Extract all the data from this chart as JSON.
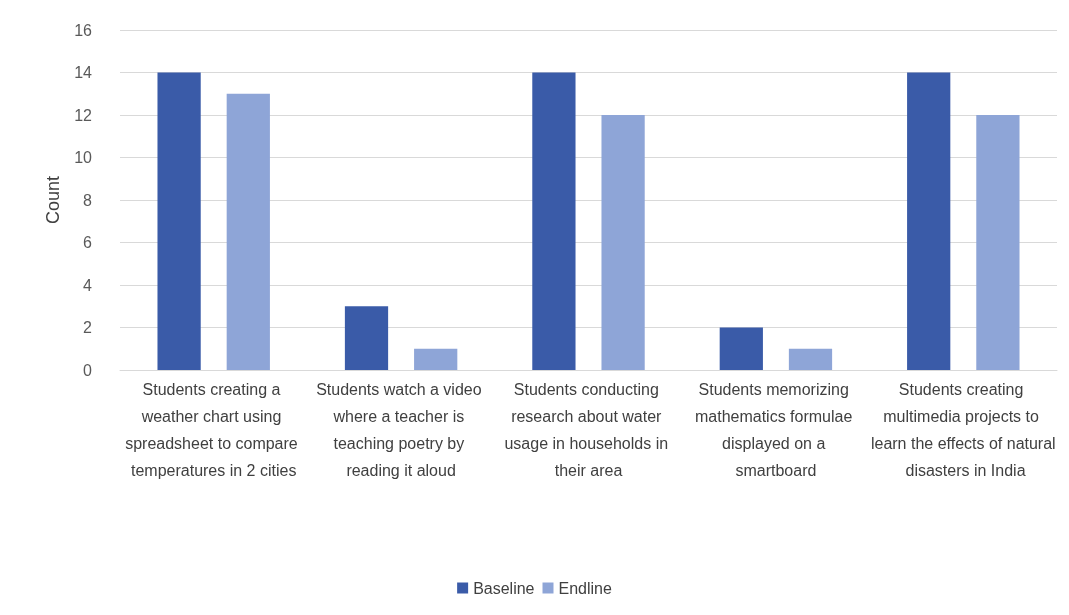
{
  "chart_data": {
    "type": "bar",
    "ylabel": "Count",
    "categories": [
      "Students creating a weather chart using spreadsheet to compare temperatures in 2 cities",
      "Students watch a video where a teacher is teaching poetry by reading it aloud",
      "Students conducting research about water usage in households in their area",
      "Students memorizing mathematics formulae displayed on a smartboard",
      "Students creating multimedia projects to learn the effects of natural disasters in India"
    ],
    "series": [
      {
        "name": "Baseline",
        "color": "#3a5ba8",
        "values": [
          14,
          3,
          14,
          2,
          14
        ]
      },
      {
        "name": "Endline",
        "color": "#8ea5d7",
        "values": [
          13,
          1,
          12,
          1,
          12
        ]
      }
    ],
    "ylim": [
      0,
      16
    ],
    "yticks": [
      0,
      2,
      4,
      6,
      8,
      10,
      12,
      14,
      16
    ],
    "grid": "y",
    "legend": "bottom"
  }
}
